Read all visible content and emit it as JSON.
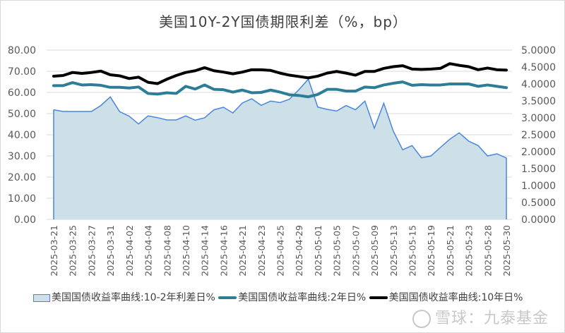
{
  "chart_data": {
    "type": "line",
    "title": "美国10Y-2Y国债期限利差（%，bp）",
    "x": [
      "2025-03-21",
      "2025-03-24",
      "2025-03-25",
      "2025-03-26",
      "2025-03-27",
      "2025-03-28",
      "2025-03-31",
      "2025-04-01",
      "2025-04-02",
      "2025-04-03",
      "2025-04-04",
      "2025-04-07",
      "2025-04-08",
      "2025-04-09",
      "2025-04-10",
      "2025-04-11",
      "2025-04-14",
      "2025-04-15",
      "2025-04-16",
      "2025-04-17",
      "2025-04-21",
      "2025-04-22",
      "2025-04-23",
      "2025-04-24",
      "2025-04-25",
      "2025-04-28",
      "2025-04-29",
      "2025-04-30",
      "2025-05-01",
      "2025-05-02",
      "2025-05-05",
      "2025-05-06",
      "2025-05-07",
      "2025-05-08",
      "2025-05-09",
      "2025-05-12",
      "2025-05-13",
      "2025-05-14",
      "2025-05-15",
      "2025-05-16",
      "2025-05-19",
      "2025-05-20",
      "2025-05-21",
      "2025-05-22",
      "2025-05-23",
      "2025-05-27",
      "2025-05-28",
      "2025-05-29",
      "2025-05-30"
    ],
    "xtick_labels": [
      "2025-03-21",
      "2025-03-25",
      "2025-03-27",
      "2025-03-31",
      "2025-04-02",
      "2025-04-04",
      "2025-04-08",
      "2025-04-10",
      "2025-04-14",
      "2025-04-16",
      "2025-04-21",
      "2025-04-23",
      "2025-04-25",
      "2025-04-29",
      "2025-05-01",
      "2025-05-05",
      "2025-05-07",
      "2025-05-09",
      "2025-05-13",
      "2025-05-15",
      "2025-05-19",
      "2025-05-21",
      "2025-05-23",
      "2025-05-28",
      "2025-05-30"
    ],
    "y_left": {
      "range": [
        0,
        80
      ],
      "ticks": [
        "0.00",
        "10.00",
        "20.00",
        "30.00",
        "40.00",
        "50.00",
        "60.00",
        "70.00",
        "80.00"
      ]
    },
    "y_right": {
      "range": [
        0,
        5
      ],
      "ticks": [
        "0.0000",
        "0.5000",
        "1.0000",
        "1.5000",
        "2.0000",
        "2.5000",
        "3.0000",
        "3.5000",
        "4.0000",
        "4.5000",
        "5.0000"
      ]
    },
    "grid": true,
    "legend_position": "bottom",
    "series": [
      {
        "name": "美国国债收益率曲线:10-2年利差日%",
        "type": "area",
        "axis": "left",
        "color": "#4a86d8",
        "fill": "#cde0e8",
        "values": [
          51.8,
          51.0,
          51.0,
          51.0,
          51.0,
          53.8,
          57.9,
          50.9,
          48.8,
          45.1,
          48.9,
          48.1,
          47.0,
          47.0,
          48.9,
          46.9,
          48.0,
          51.8,
          53.0,
          50.3,
          55.0,
          57.0,
          53.9,
          55.9,
          55.2,
          56.8,
          61.3,
          66.3,
          53.1,
          52.0,
          51.2,
          53.8,
          51.8,
          55.9,
          43.1,
          54.9,
          41.8,
          32.9,
          34.9,
          29.1,
          30.0,
          34.0,
          37.9,
          40.9,
          37.0,
          34.9,
          30.0,
          31.0,
          29.0
        ]
      },
      {
        "name": "美国国债收益率曲线:2年日%",
        "type": "line",
        "axis": "right",
        "color": "#2e7d96",
        "values": [
          3.95,
          3.95,
          4.04,
          3.97,
          3.98,
          3.96,
          3.9,
          3.9,
          3.88,
          3.91,
          3.72,
          3.7,
          3.74,
          3.72,
          3.93,
          3.85,
          3.97,
          3.84,
          3.83,
          3.76,
          3.82,
          3.74,
          3.75,
          3.82,
          3.76,
          3.68,
          3.66,
          3.62,
          3.69,
          3.84,
          3.84,
          3.79,
          3.79,
          3.91,
          3.89,
          3.97,
          4.02,
          4.06,
          3.96,
          3.98,
          3.97,
          3.97,
          4.0,
          4.0,
          4.0,
          3.93,
          3.97,
          3.93,
          3.89
        ]
      },
      {
        "name": "美国国债收益率曲线:10年日%",
        "type": "line",
        "axis": "right",
        "color": "#000000",
        "values": [
          4.23,
          4.25,
          4.34,
          4.31,
          4.34,
          4.38,
          4.27,
          4.24,
          4.16,
          4.2,
          4.05,
          4.01,
          4.14,
          4.25,
          4.34,
          4.39,
          4.48,
          4.39,
          4.35,
          4.3,
          4.35,
          4.42,
          4.42,
          4.4,
          4.32,
          4.26,
          4.22,
          4.18,
          4.23,
          4.32,
          4.37,
          4.32,
          4.26,
          4.37,
          4.37,
          4.46,
          4.51,
          4.54,
          4.44,
          4.43,
          4.44,
          4.46,
          4.6,
          4.55,
          4.51,
          4.42,
          4.47,
          4.42,
          4.41
        ]
      }
    ]
  },
  "watermark": "雪球：九泰基金"
}
